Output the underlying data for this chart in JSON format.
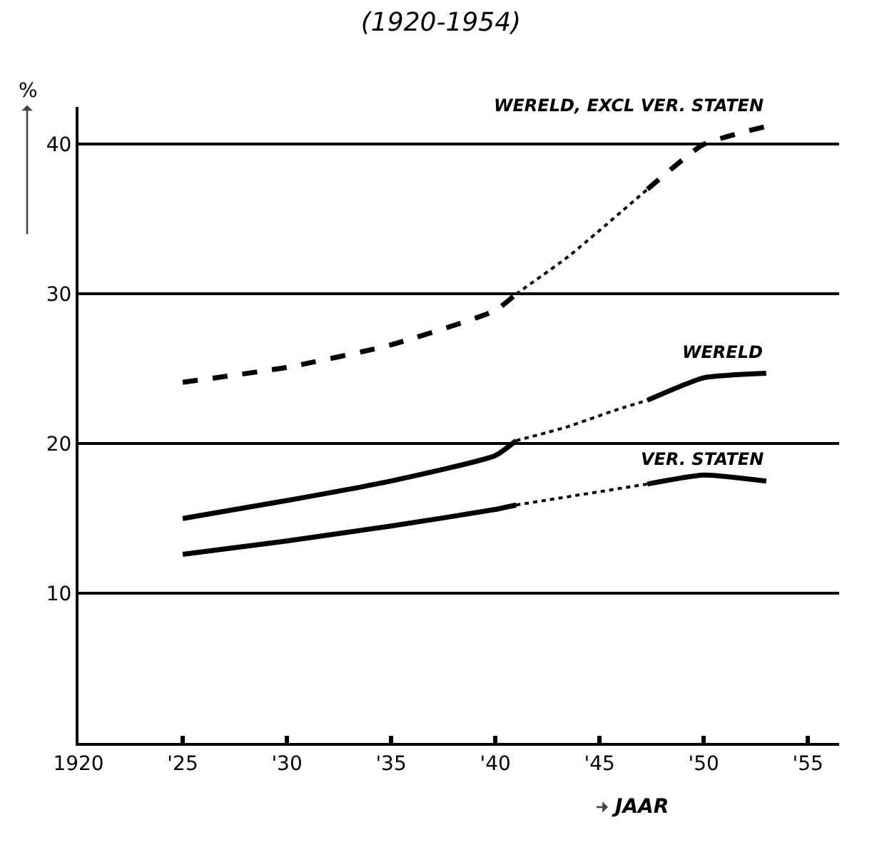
{
  "chart_data": {
    "type": "line",
    "title": "(1920-1954)",
    "xlabel": "JAAR",
    "ylabel": "%",
    "xlim": [
      1920,
      1956.5
    ],
    "ylim": [
      0,
      42.5
    ],
    "xticks": [
      1920,
      {
        "value": 1925,
        "label": "'25"
      },
      {
        "value": 1930,
        "label": "'30"
      },
      {
        "value": 1935,
        "label": "'35"
      },
      {
        "value": 1940,
        "label": "'40"
      },
      {
        "value": 1945,
        "label": "'45"
      },
      {
        "value": 1950,
        "label": "'50"
      },
      {
        "value": 1955,
        "label": "'55"
      }
    ],
    "yticks": [
      10,
      20,
      30,
      40
    ],
    "grid": "y",
    "legend": false,
    "marker": "none",
    "series": [
      {
        "color": "#000000",
        "line_style": "dashed",
        "x": [
          1925,
          1930,
          1935,
          1940,
          1941
        ],
        "values": [
          24.1,
          25.1,
          26.6,
          28.9,
          30
        ]
      },
      {
        "color": "#000000",
        "line_style": "dotted",
        "x": [
          1941,
          1943.5,
          1947.3
        ],
        "values": [
          30,
          32.5,
          37
        ]
      },
      {
        "name": "WERELD, EXCL VER. STATEN",
        "color": "#000000",
        "line_style": "dashed",
        "x": [
          1947.3,
          1950,
          1953
        ],
        "values": [
          37,
          40,
          41.2
        ]
      },
      {
        "color": "#000000",
        "line_style": "solid",
        "x": [
          1925,
          1930,
          1935,
          1940,
          1941
        ],
        "values": [
          15,
          16.2,
          17.5,
          19.2,
          20.2
        ]
      },
      {
        "color": "#000000",
        "line_style": "dotted",
        "x": [
          1941,
          1943.4,
          1945.9,
          1947.3
        ],
        "values": [
          20.2,
          21.1,
          22.3,
          22.9
        ]
      },
      {
        "name": "WERELD",
        "color": "#000000",
        "line_style": "solid",
        "x": [
          1947.3,
          1950,
          1953
        ],
        "values": [
          22.9,
          24.4,
          24.7
        ]
      },
      {
        "color": "#000000",
        "line_style": "solid",
        "x": [
          1925,
          1930,
          1935,
          1940,
          1941
        ],
        "values": [
          12.6,
          13.5,
          14.5,
          15.6,
          15.9
        ]
      },
      {
        "color": "#000000",
        "line_style": "dotted",
        "x": [
          1941,
          1947.3
        ],
        "values": [
          15.9,
          17.3
        ]
      },
      {
        "name": "VER. STATEN",
        "color": "#000000",
        "line_style": "solid",
        "x": [
          1947.3,
          1950,
          1953
        ],
        "values": [
          17.3,
          17.9,
          17.5
        ]
      }
    ]
  }
}
